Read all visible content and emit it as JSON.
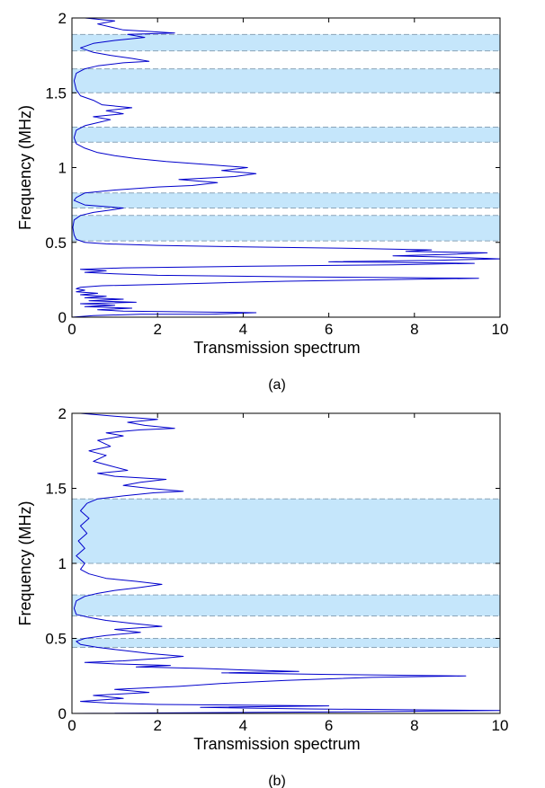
{
  "chart_data": [
    {
      "type": "line",
      "caption": "(a)",
      "xlabel": "Transmission spectrum",
      "ylabel": "Frequency (MHz)",
      "xlim": [
        0,
        10
      ],
      "ylim": [
        0,
        2
      ],
      "xticks": [
        0,
        2,
        4,
        6,
        8,
        10
      ],
      "yticks": [
        0,
        0.5,
        1,
        1.5,
        2
      ],
      "grid": false,
      "band_color": "#c5e6fb",
      "line_color": "#0000cc",
      "bandgaps": [
        [
          0.51,
          0.68
        ],
        [
          0.73,
          0.83
        ],
        [
          1.17,
          1.27
        ],
        [
          1.5,
          1.66
        ],
        [
          1.78,
          1.89
        ]
      ],
      "series": [
        {
          "points": [
            [
              0.0,
              0.0
            ],
            [
              0.5,
              0.01
            ],
            [
              1.6,
              0.02
            ],
            [
              3.2,
              0.02
            ],
            [
              4.3,
              0.03
            ],
            [
              1.2,
              0.04
            ],
            [
              0.6,
              0.05
            ],
            [
              1.4,
              0.06
            ],
            [
              0.3,
              0.07
            ],
            [
              1.0,
              0.08
            ],
            [
              0.2,
              0.09
            ],
            [
              1.5,
              0.1
            ],
            [
              0.4,
              0.11
            ],
            [
              1.2,
              0.12
            ],
            [
              0.3,
              0.13
            ],
            [
              0.8,
              0.14
            ],
            [
              0.2,
              0.15
            ],
            [
              0.6,
              0.16
            ],
            [
              0.1,
              0.17
            ],
            [
              0.3,
              0.18
            ],
            [
              0.1,
              0.19
            ],
            [
              0.2,
              0.2
            ],
            [
              0.7,
              0.21
            ],
            [
              2.2,
              0.22
            ],
            [
              3.5,
              0.23
            ],
            [
              5.0,
              0.24
            ],
            [
              7.2,
              0.25
            ],
            [
              9.5,
              0.26
            ],
            [
              5.0,
              0.27
            ],
            [
              2.0,
              0.28
            ],
            [
              1.0,
              0.29
            ],
            [
              0.3,
              0.3
            ],
            [
              0.8,
              0.31
            ],
            [
              0.2,
              0.32
            ],
            [
              1.2,
              0.33
            ],
            [
              4.0,
              0.34
            ],
            [
              7.5,
              0.35
            ],
            [
              9.4,
              0.36
            ],
            [
              6.0,
              0.37
            ],
            [
              8.5,
              0.38
            ],
            [
              10.0,
              0.39
            ],
            [
              9.0,
              0.4
            ],
            [
              7.5,
              0.41
            ],
            [
              8.8,
              0.42
            ],
            [
              9.7,
              0.43
            ],
            [
              7.8,
              0.44
            ],
            [
              8.4,
              0.45
            ],
            [
              6.5,
              0.46
            ],
            [
              4.0,
              0.47
            ],
            [
              2.0,
              0.48
            ],
            [
              0.8,
              0.49
            ],
            [
              0.3,
              0.5
            ],
            [
              0.1,
              0.52
            ],
            [
              0.05,
              0.55
            ],
            [
              0.02,
              0.6
            ],
            [
              0.05,
              0.65
            ],
            [
              0.2,
              0.68
            ],
            [
              0.5,
              0.7
            ],
            [
              1.0,
              0.72
            ],
            [
              1.2,
              0.73
            ],
            [
              0.3,
              0.75
            ],
            [
              0.05,
              0.78
            ],
            [
              0.1,
              0.8
            ],
            [
              0.3,
              0.83
            ],
            [
              1.0,
              0.85
            ],
            [
              2.0,
              0.87
            ],
            [
              2.8,
              0.88
            ],
            [
              3.4,
              0.9
            ],
            [
              2.5,
              0.92
            ],
            [
              3.8,
              0.94
            ],
            [
              4.3,
              0.96
            ],
            [
              3.5,
              0.98
            ],
            [
              4.1,
              1.0
            ],
            [
              3.2,
              1.02
            ],
            [
              2.2,
              1.04
            ],
            [
              1.5,
              1.06
            ],
            [
              1.0,
              1.08
            ],
            [
              0.6,
              1.1
            ],
            [
              0.3,
              1.13
            ],
            [
              0.1,
              1.16
            ],
            [
              0.05,
              1.2
            ],
            [
              0.1,
              1.25
            ],
            [
              0.3,
              1.28
            ],
            [
              0.6,
              1.3
            ],
            [
              0.9,
              1.32
            ],
            [
              0.5,
              1.34
            ],
            [
              1.2,
              1.36
            ],
            [
              0.8,
              1.38
            ],
            [
              1.4,
              1.4
            ],
            [
              0.7,
              1.42
            ],
            [
              0.5,
              1.45
            ],
            [
              0.2,
              1.48
            ],
            [
              0.1,
              1.52
            ],
            [
              0.05,
              1.58
            ],
            [
              0.1,
              1.63
            ],
            [
              0.3,
              1.66
            ],
            [
              0.6,
              1.68
            ],
            [
              1.2,
              1.7
            ],
            [
              1.8,
              1.71
            ],
            [
              1.4,
              1.73
            ],
            [
              0.9,
              1.75
            ],
            [
              0.5,
              1.77
            ],
            [
              0.2,
              1.8
            ],
            [
              0.5,
              1.83
            ],
            [
              1.0,
              1.85
            ],
            [
              1.7,
              1.87
            ],
            [
              1.3,
              1.89
            ],
            [
              2.4,
              1.9
            ],
            [
              1.2,
              1.92
            ],
            [
              0.9,
              1.94
            ],
            [
              0.6,
              1.96
            ],
            [
              1.0,
              1.98
            ],
            [
              0.3,
              2.0
            ]
          ]
        }
      ]
    },
    {
      "type": "line",
      "caption": "(b)",
      "xlabel": "Transmission spectrum",
      "ylabel": "Frequency (MHz)",
      "xlim": [
        0,
        10
      ],
      "ylim": [
        0,
        2
      ],
      "xticks": [
        0,
        2,
        4,
        6,
        8,
        10
      ],
      "yticks": [
        0,
        0.5,
        1,
        1.5,
        2
      ],
      "grid": false,
      "band_color": "#c5e6fb",
      "line_color": "#0000cc",
      "bandgaps": [
        [
          0.44,
          0.5
        ],
        [
          0.65,
          0.79
        ],
        [
          1.0,
          1.43
        ]
      ],
      "series": [
        {
          "points": [
            [
              0.0,
              0.0
            ],
            [
              6.2,
              0.01
            ],
            [
              10.0,
              0.02
            ],
            [
              5.5,
              0.03
            ],
            [
              3.0,
              0.04
            ],
            [
              6.0,
              0.05
            ],
            [
              2.0,
              0.06
            ],
            [
              0.8,
              0.07
            ],
            [
              0.2,
              0.08
            ],
            [
              1.2,
              0.1
            ],
            [
              0.5,
              0.12
            ],
            [
              1.8,
              0.14
            ],
            [
              1.0,
              0.16
            ],
            [
              2.5,
              0.18
            ],
            [
              3.5,
              0.2
            ],
            [
              5.0,
              0.22
            ],
            [
              7.0,
              0.24
            ],
            [
              9.2,
              0.25
            ],
            [
              6.0,
              0.26
            ],
            [
              3.5,
              0.27
            ],
            [
              5.3,
              0.28
            ],
            [
              4.0,
              0.29
            ],
            [
              3.0,
              0.3
            ],
            [
              1.5,
              0.31
            ],
            [
              2.3,
              0.32
            ],
            [
              1.0,
              0.33
            ],
            [
              0.3,
              0.34
            ],
            [
              1.2,
              0.35
            ],
            [
              2.2,
              0.37
            ],
            [
              2.6,
              0.38
            ],
            [
              1.8,
              0.4
            ],
            [
              1.2,
              0.42
            ],
            [
              0.6,
              0.44
            ],
            [
              0.2,
              0.46
            ],
            [
              0.1,
              0.48
            ],
            [
              0.3,
              0.5
            ],
            [
              0.8,
              0.52
            ],
            [
              1.6,
              0.54
            ],
            [
              1.0,
              0.56
            ],
            [
              2.1,
              0.58
            ],
            [
              1.4,
              0.6
            ],
            [
              0.8,
              0.62
            ],
            [
              0.4,
              0.64
            ],
            [
              0.1,
              0.66
            ],
            [
              0.05,
              0.7
            ],
            [
              0.1,
              0.75
            ],
            [
              0.3,
              0.78
            ],
            [
              0.6,
              0.8
            ],
            [
              1.0,
              0.82
            ],
            [
              1.6,
              0.84
            ],
            [
              2.1,
              0.86
            ],
            [
              1.5,
              0.88
            ],
            [
              0.8,
              0.9
            ],
            [
              0.4,
              0.93
            ],
            [
              0.2,
              0.96
            ],
            [
              0.3,
              1.0
            ],
            [
              0.1,
              1.05
            ],
            [
              0.3,
              1.1
            ],
            [
              0.15,
              1.15
            ],
            [
              0.35,
              1.2
            ],
            [
              0.2,
              1.25
            ],
            [
              0.4,
              1.3
            ],
            [
              0.2,
              1.35
            ],
            [
              0.35,
              1.4
            ],
            [
              0.6,
              1.43
            ],
            [
              1.2,
              1.45
            ],
            [
              1.9,
              1.47
            ],
            [
              2.6,
              1.48
            ],
            [
              1.8,
              1.5
            ],
            [
              1.2,
              1.52
            ],
            [
              1.6,
              1.54
            ],
            [
              2.2,
              1.56
            ],
            [
              1.0,
              1.58
            ],
            [
              0.6,
              1.6
            ],
            [
              1.3,
              1.62
            ],
            [
              0.9,
              1.65
            ],
            [
              0.5,
              1.68
            ],
            [
              0.8,
              1.72
            ],
            [
              0.4,
              1.75
            ],
            [
              0.9,
              1.78
            ],
            [
              0.6,
              1.82
            ],
            [
              1.2,
              1.85
            ],
            [
              0.8,
              1.87
            ],
            [
              1.6,
              1.89
            ],
            [
              2.4,
              1.9
            ],
            [
              1.7,
              1.92
            ],
            [
              1.3,
              1.94
            ],
            [
              2.0,
              1.96
            ],
            [
              1.0,
              1.98
            ],
            [
              0.2,
              2.0
            ]
          ]
        }
      ]
    }
  ]
}
